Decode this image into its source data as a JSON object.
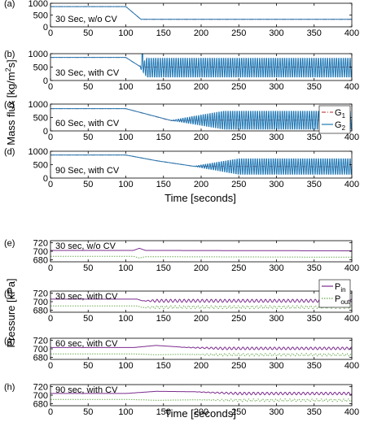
{
  "figure": {
    "top_group": {
      "ylabel": "Mass flux [kg/m",
      "ylabel_sup": "2",
      "ylabel_tail": "s]",
      "xlabel": "Time [seconds]"
    },
    "bottom_group": {
      "ylabel": "Pressure [kPa]",
      "xlabel": "Time [seconds]"
    }
  },
  "chart_data": [
    {
      "type": "line",
      "panel": "(a)",
      "annotation": "30 Sec, w/o CV",
      "xlim": [
        0,
        400
      ],
      "ylim": [
        0,
        1000
      ],
      "xticks": [
        0,
        50,
        100,
        150,
        200,
        250,
        300,
        350,
        400
      ],
      "yticks": [
        0,
        500,
        1000
      ],
      "series": [
        {
          "name": "G1",
          "color": "#c0504d",
          "dash": "dashdot",
          "points": [
            [
              0,
              860
            ],
            [
              100,
              860
            ],
            [
              120,
              320
            ],
            [
              400,
              320
            ]
          ]
        },
        {
          "name": "G2",
          "color": "#1f77b4",
          "dash": "solid",
          "points": [
            [
              0,
              860
            ],
            [
              100,
              860
            ],
            [
              120,
              320
            ],
            [
              400,
              320
            ]
          ]
        }
      ]
    },
    {
      "type": "line",
      "panel": "(b)",
      "annotation": "30 Sec, with CV",
      "xlim": [
        0,
        400
      ],
      "ylim": [
        0,
        1000
      ],
      "xticks": [
        0,
        50,
        100,
        150,
        200,
        250,
        300,
        350,
        400
      ],
      "yticks": [
        0,
        500,
        1000
      ],
      "series": [
        {
          "name": "G1",
          "color": "#c0504d",
          "dash": "dashdot",
          "points": [
            [
              0,
              860
            ],
            [
              100,
              860
            ],
            [
              120,
              500
            ],
            [
              400,
              500
            ]
          ]
        },
        {
          "name": "G2",
          "color": "#1f77b4",
          "dash": "solid",
          "points": [
            [
              0,
              860
            ],
            [
              100,
              860
            ],
            [
              120,
              500
            ],
            [
              400,
              500
            ]
          ],
          "oscillation": {
            "start": 118,
            "full": 128,
            "mean": 480,
            "amplitude": 400,
            "period": 3.0,
            "spike_x": 122,
            "spike_y": 1000
          }
        }
      ]
    },
    {
      "type": "line",
      "panel": "(c)",
      "annotation": "60 Sec, with CV",
      "xlim": [
        0,
        400
      ],
      "ylim": [
        0,
        1000
      ],
      "xticks": [
        0,
        50,
        100,
        150,
        200,
        250,
        300,
        350,
        400
      ],
      "yticks": [
        0,
        500,
        1000
      ],
      "legend": {
        "position": "right",
        "entries": [
          {
            "name": "G",
            "sub": "1",
            "color": "#c0504d",
            "dash": "dashdot"
          },
          {
            "name": "G",
            "sub": "2",
            "color": "#1f77b4",
            "dash": "solid"
          }
        ]
      },
      "series": [
        {
          "name": "G1",
          "color": "#c0504d",
          "dash": "dashdot",
          "points": [
            [
              0,
              830
            ],
            [
              100,
              830
            ],
            [
              160,
              380
            ],
            [
              200,
              400
            ],
            [
              400,
              400
            ]
          ]
        },
        {
          "name": "G2",
          "color": "#1f77b4",
          "dash": "solid",
          "points": [
            [
              0,
              830
            ],
            [
              100,
              830
            ],
            [
              160,
              390
            ],
            [
              200,
              400
            ],
            [
              400,
              400
            ]
          ],
          "oscillation": {
            "start": 160,
            "full": 230,
            "mean": 400,
            "amplitude": 380,
            "period": 3.0
          }
        }
      ]
    },
    {
      "type": "line",
      "panel": "(d)",
      "annotation": "90 Sec, with CV",
      "xlim": [
        0,
        400
      ],
      "ylim": [
        0,
        1000
      ],
      "xticks": [
        0,
        50,
        100,
        150,
        200,
        250,
        300,
        350,
        400
      ],
      "yticks": [
        0,
        500,
        1000
      ],
      "series": [
        {
          "name": "G1",
          "color": "#c0504d",
          "dash": "dashdot",
          "points": [
            [
              0,
              860
            ],
            [
              100,
              860
            ],
            [
              140,
              650
            ],
            [
              190,
              440
            ],
            [
              400,
              420
            ]
          ]
        },
        {
          "name": "G2",
          "color": "#1f77b4",
          "dash": "solid",
          "points": [
            [
              0,
              860
            ],
            [
              100,
              860
            ],
            [
              140,
              650
            ],
            [
              190,
              440
            ],
            [
              400,
              420
            ]
          ],
          "oscillation": {
            "start": 190,
            "full": 250,
            "mean": 430,
            "amplitude": 330,
            "period": 3.0
          }
        }
      ]
    },
    {
      "type": "line",
      "panel": "(e)",
      "annotation": "30 sec, w/o CV",
      "xlim": [
        0,
        400
      ],
      "ylim": [
        675,
        725
      ],
      "xticks": [
        0,
        50,
        100,
        150,
        200,
        250,
        300,
        350,
        400
      ],
      "yticks": [
        680,
        700,
        720
      ],
      "series": [
        {
          "name": "Pin",
          "color": "#7b2c8e",
          "dash": "solid",
          "points": [
            [
              0,
              702
            ],
            [
              110,
              702
            ],
            [
              118,
              707
            ],
            [
              126,
              702
            ],
            [
              400,
              701
            ]
          ]
        },
        {
          "name": "Pout",
          "color": "#6aa84f",
          "dash": "dotted",
          "points": [
            [
              0,
              688
            ],
            [
              110,
              688
            ],
            [
              118,
              684
            ],
            [
              126,
              687
            ],
            [
              400,
              686
            ]
          ]
        }
      ]
    },
    {
      "type": "line",
      "panel": "(f)",
      "annotation": "30 sec, with CV",
      "xlim": [
        0,
        400
      ],
      "ylim": [
        675,
        725
      ],
      "xticks": [
        0,
        50,
        100,
        150,
        200,
        250,
        300,
        350,
        400
      ],
      "yticks": [
        680,
        700,
        720
      ],
      "legend": {
        "position": "top-right",
        "entries": [
          {
            "name": "P",
            "sub": "in",
            "color": "#7b2c8e",
            "dash": "solid"
          },
          {
            "name": "P",
            "sub": "out",
            "color": "#6aa84f",
            "dash": "dotted"
          }
        ]
      },
      "series": [
        {
          "name": "Pin",
          "color": "#7b2c8e",
          "dash": "solid",
          "points": [
            [
              0,
              706
            ],
            [
              115,
              706
            ],
            [
              122,
              702
            ],
            [
              400,
              702
            ]
          ],
          "oscillation": {
            "start": 122,
            "full": 140,
            "mean": 702,
            "amplitude": 3.5,
            "period": 6.0
          }
        },
        {
          "name": "Pout",
          "color": "#6aa84f",
          "dash": "dotted",
          "points": [
            [
              0,
              690
            ],
            [
              115,
              690
            ],
            [
              122,
              686
            ],
            [
              400,
              687
            ]
          ],
          "oscillation": {
            "start": 122,
            "full": 140,
            "mean": 687,
            "amplitude": 3.5,
            "period": 6.0
          }
        }
      ]
    },
    {
      "type": "line",
      "panel": "(g)",
      "annotation": "60 sec, with CV",
      "xlim": [
        0,
        400
      ],
      "ylim": [
        675,
        725
      ],
      "xticks": [
        0,
        50,
        100,
        150,
        200,
        250,
        300,
        350,
        400
      ],
      "yticks": [
        680,
        700,
        720
      ],
      "series": [
        {
          "name": "Pin",
          "color": "#7b2c8e",
          "dash": "solid",
          "points": [
            [
              0,
              703
            ],
            [
              110,
              703
            ],
            [
              140,
              708
            ],
            [
              175,
              704
            ],
            [
              400,
              701
            ]
          ],
          "oscillation": {
            "start": 170,
            "full": 230,
            "mean": 701,
            "amplitude": 3.0,
            "period": 6.0
          }
        },
        {
          "name": "Pout",
          "color": "#6aa84f",
          "dash": "dotted",
          "points": [
            [
              0,
              688
            ],
            [
              110,
              688
            ],
            [
              140,
              686
            ],
            [
              175,
              687
            ],
            [
              400,
              686
            ]
          ],
          "oscillation": {
            "start": 170,
            "full": 230,
            "mean": 686,
            "amplitude": 3.0,
            "period": 6.0
          }
        }
      ]
    },
    {
      "type": "line",
      "panel": "(h)",
      "annotation": "90 sec, with CV",
      "xlim": [
        0,
        400
      ],
      "ylim": [
        675,
        725
      ],
      "xticks": [
        0,
        50,
        100,
        150,
        200,
        250,
        300,
        350,
        400
      ],
      "yticks": [
        680,
        700,
        720
      ],
      "series": [
        {
          "name": "Pin",
          "color": "#7b2c8e",
          "dash": "solid",
          "points": [
            [
              0,
              704
            ],
            [
              100,
              704
            ],
            [
              140,
              709
            ],
            [
              200,
              708
            ],
            [
              400,
              704
            ]
          ],
          "oscillation": {
            "start": 190,
            "full": 250,
            "mean": 704,
            "amplitude": 3.0,
            "period": 6.0
          }
        },
        {
          "name": "Pout",
          "color": "#6aa84f",
          "dash": "dotted",
          "points": [
            [
              0,
              690
            ],
            [
              100,
              690
            ],
            [
              140,
              688
            ],
            [
              200,
              689
            ],
            [
              400,
              688
            ]
          ],
          "oscillation": {
            "start": 190,
            "full": 250,
            "mean": 688,
            "amplitude": 3.0,
            "period": 6.0
          }
        }
      ]
    }
  ]
}
